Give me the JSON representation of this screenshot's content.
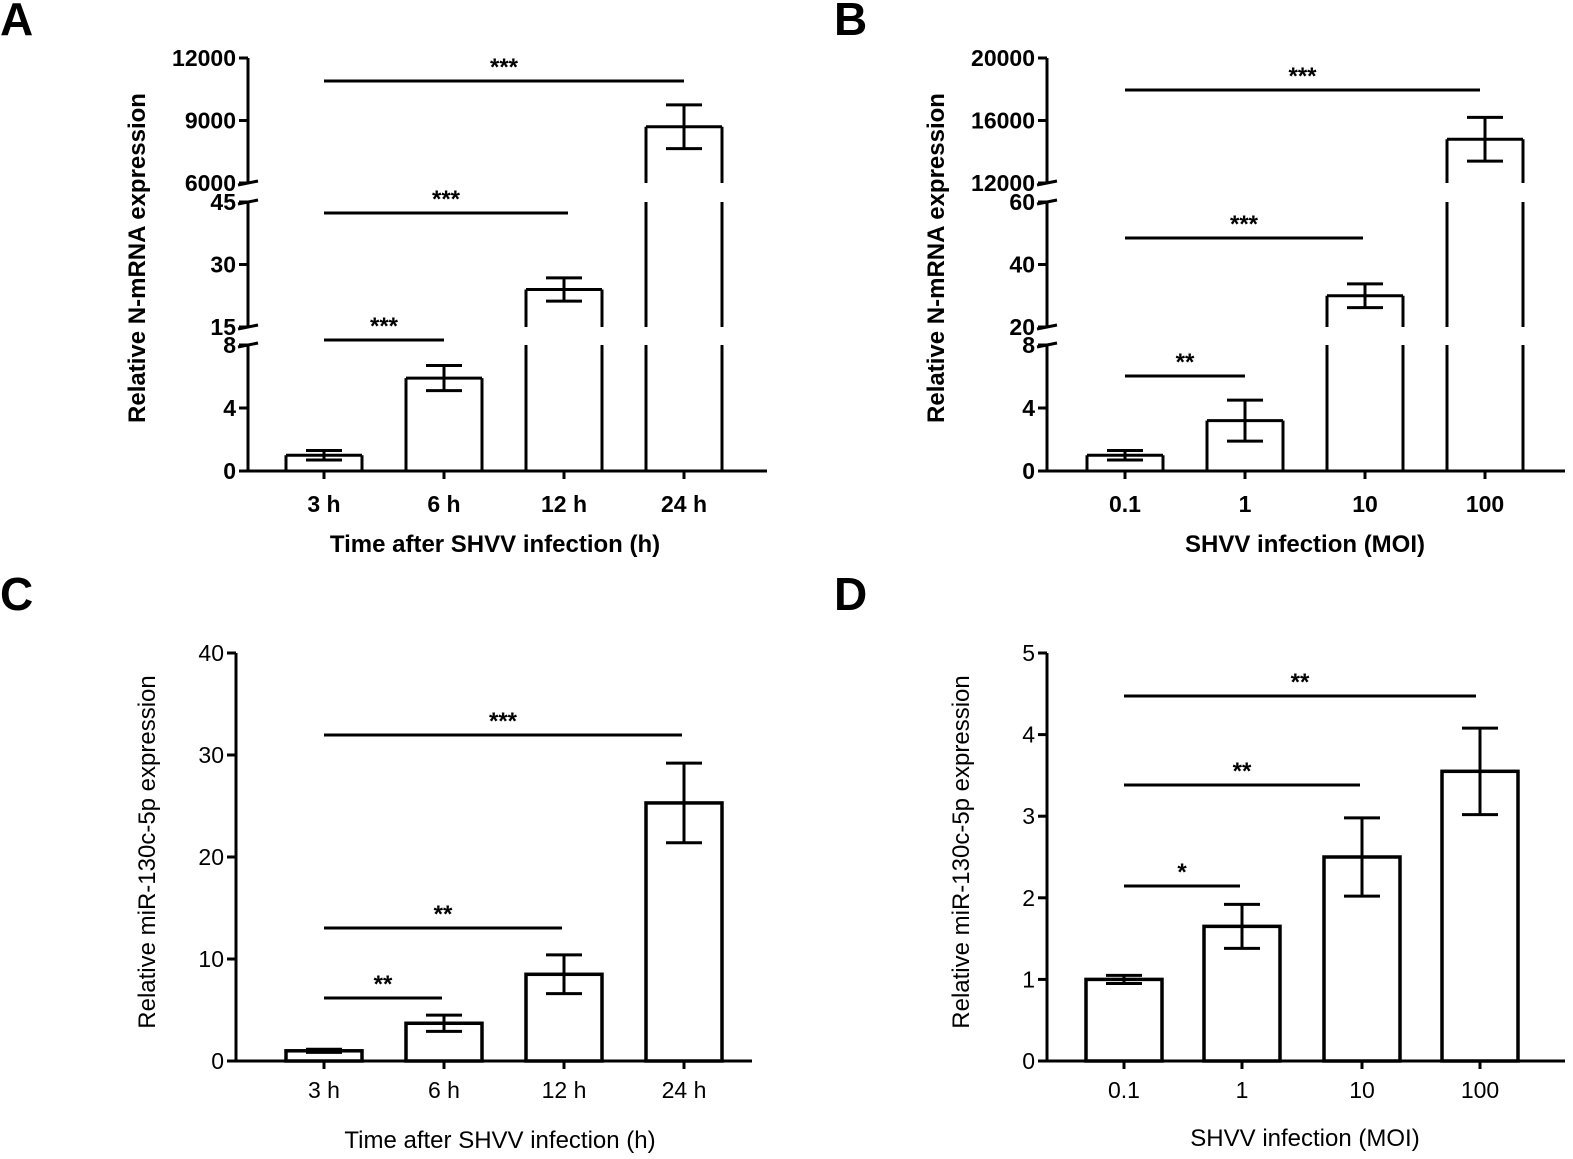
{
  "figure": {
    "panels": [
      "A",
      "B",
      "C",
      "D"
    ]
  },
  "chart_data": [
    {
      "panel": "A",
      "type": "bar",
      "broken_y_axis": true,
      "categories": [
        "3 h",
        "6 h",
        "12 h",
        "24 h"
      ],
      "values": [
        1.0,
        5.9,
        24.0,
        8700
      ],
      "error": [
        0.3,
        0.8,
        2.8,
        1050
      ],
      "xlabel": "Time after SHVV infection (h)",
      "ylabel": "Relative N-mRNA expression",
      "y_segments": [
        {
          "range": [
            0,
            8
          ],
          "ticks": [
            0,
            4,
            8
          ]
        },
        {
          "range": [
            15,
            45
          ],
          "ticks": [
            15,
            30,
            45
          ]
        },
        {
          "range": [
            6000,
            12000
          ],
          "ticks": [
            6000,
            9000,
            12000
          ]
        }
      ],
      "significance": [
        {
          "from": 0,
          "to": 1,
          "label": "***"
        },
        {
          "from": 0,
          "to": 2,
          "label": "***"
        },
        {
          "from": 0,
          "to": 3,
          "label": "***"
        }
      ]
    },
    {
      "panel": "B",
      "type": "bar",
      "broken_y_axis": true,
      "categories": [
        "0.1",
        "1",
        "10",
        "100"
      ],
      "values": [
        1.0,
        3.2,
        30.0,
        14800
      ],
      "error": [
        0.3,
        1.3,
        3.8,
        1400
      ],
      "xlabel": "SHVV infection (MOI)",
      "ylabel": "Relative N-mRNA expression",
      "y_segments": [
        {
          "range": [
            0,
            8
          ],
          "ticks": [
            0,
            4,
            8
          ]
        },
        {
          "range": [
            20,
            60
          ],
          "ticks": [
            20,
            40,
            60
          ]
        },
        {
          "range": [
            12000,
            20000
          ],
          "ticks": [
            12000,
            16000,
            20000
          ]
        }
      ],
      "significance": [
        {
          "from": 0,
          "to": 1,
          "label": "**"
        },
        {
          "from": 0,
          "to": 2,
          "label": "***"
        },
        {
          "from": 0,
          "to": 3,
          "label": "***"
        }
      ]
    },
    {
      "panel": "C",
      "type": "bar",
      "categories": [
        "3 h",
        "6 h",
        "12 h",
        "24 h"
      ],
      "values": [
        1.0,
        3.7,
        8.5,
        25.3
      ],
      "error": [
        0.15,
        0.8,
        1.9,
        3.9
      ],
      "xlabel": "Time after SHVV infection (h)",
      "ylabel": "Relative miR-130c-5p expression",
      "ylim": [
        0,
        40
      ],
      "yticks": [
        0,
        10,
        20,
        30,
        40
      ],
      "significance": [
        {
          "from": 0,
          "to": 1,
          "label": "**"
        },
        {
          "from": 0,
          "to": 2,
          "label": "**"
        },
        {
          "from": 0,
          "to": 3,
          "label": "***"
        }
      ]
    },
    {
      "panel": "D",
      "type": "bar",
      "categories": [
        "0.1",
        "1",
        "10",
        "100"
      ],
      "values": [
        1.0,
        1.65,
        2.5,
        3.55
      ],
      "error": [
        0.05,
        0.27,
        0.48,
        0.53
      ],
      "xlabel": "SHVV infection (MOI)",
      "ylabel": "Relative miR-130c-5p expression",
      "ylim": [
        0,
        5
      ],
      "yticks": [
        0,
        1,
        2,
        3,
        4,
        5
      ],
      "significance": [
        {
          "from": 0,
          "to": 1,
          "label": "*"
        },
        {
          "from": 0,
          "to": 2,
          "label": "**"
        },
        {
          "from": 0,
          "to": 3,
          "label": "**"
        }
      ]
    }
  ]
}
